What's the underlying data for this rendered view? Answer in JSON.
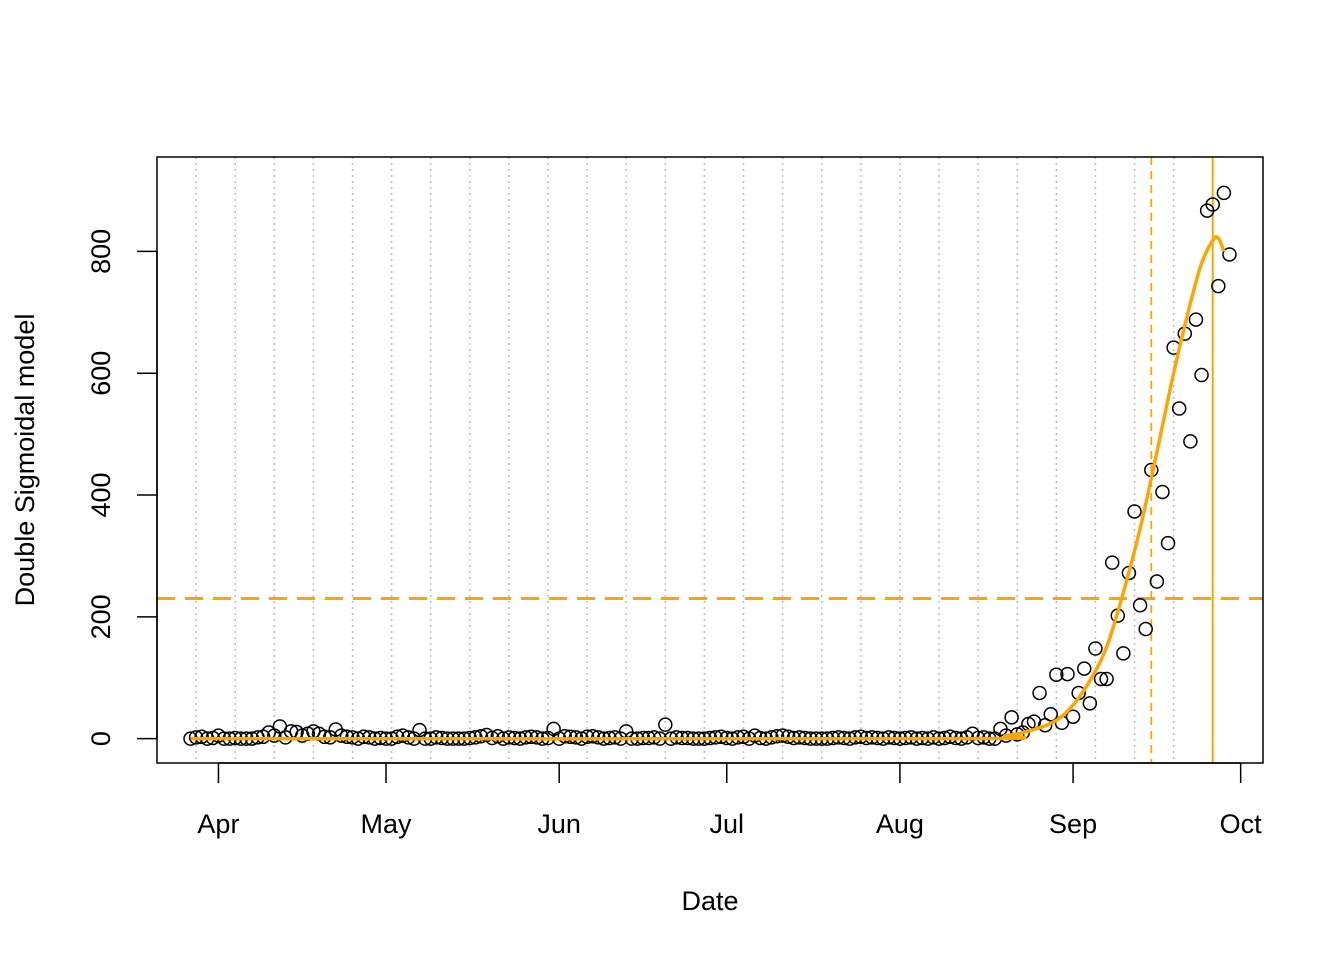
{
  "chart_data": {
    "type": "scatter",
    "title": "",
    "xlabel": "Date",
    "ylabel": "Double Sigmoidal model",
    "xlim": [
      "2020-03-21",
      "2020-10-05"
    ],
    "ylim": [
      -40,
      955
    ],
    "x_ticks": [
      {
        "date": "2020-04-01",
        "label": "Apr"
      },
      {
        "date": "2020-05-01",
        "label": "May"
      },
      {
        "date": "2020-06-01",
        "label": "Jun"
      },
      {
        "date": "2020-07-01",
        "label": "Jul"
      },
      {
        "date": "2020-08-01",
        "label": "Aug"
      },
      {
        "date": "2020-09-01",
        "label": "Sep"
      },
      {
        "date": "2020-10-01",
        "label": "Oct"
      }
    ],
    "y_ticks": [
      0,
      200,
      400,
      600,
      800
    ],
    "weekly_grid_dates": [
      "2020-03-28",
      "2020-04-04",
      "2020-04-11",
      "2020-04-18",
      "2020-04-25",
      "2020-05-02",
      "2020-05-09",
      "2020-05-16",
      "2020-05-23",
      "2020-05-30",
      "2020-06-06",
      "2020-06-13",
      "2020-06-20",
      "2020-06-27",
      "2020-07-04",
      "2020-07-11",
      "2020-07-18",
      "2020-07-25",
      "2020-08-01",
      "2020-08-08",
      "2020-08-15",
      "2020-08-22",
      "2020-08-29",
      "2020-09-05",
      "2020-09-12",
      "2020-09-19",
      "2020-09-26"
    ],
    "grid_color": "#bebebe",
    "model_color": "#ffa500",
    "horizontal_reference": 230,
    "dashed_vertical_date": "2020-09-15",
    "solid_vertical_date": "2020-09-26",
    "start_date": "2020-03-27",
    "observed": [
      0,
      2,
      3,
      0,
      1,
      5,
      0,
      0,
      1,
      0,
      0,
      0,
      2,
      3,
      10,
      5,
      20,
      2,
      12,
      11,
      5,
      8,
      12,
      8,
      3,
      2,
      15,
      5,
      3,
      2,
      0,
      3,
      2,
      0,
      1,
      0,
      0,
      3,
      5,
      2,
      0,
      14,
      0,
      0,
      2,
      1,
      0,
      0,
      0,
      0,
      1,
      2,
      4,
      6,
      1,
      4,
      0,
      2,
      1,
      0,
      2,
      3,
      2,
      0,
      1,
      16,
      0,
      4,
      3,
      2,
      0,
      3,
      4,
      2,
      0,
      1,
      2,
      0,
      12,
      0,
      0,
      1,
      1,
      2,
      0,
      23,
      0,
      2,
      1,
      1,
      0,
      0,
      0,
      1,
      2,
      3,
      1,
      0,
      2,
      3,
      0,
      5,
      1,
      0,
      2,
      4,
      5,
      3,
      1,
      2,
      1,
      0,
      0,
      0,
      0,
      1,
      2,
      1,
      0,
      2,
      3,
      1,
      2,
      1,
      0,
      2,
      1,
      0,
      1,
      2,
      0,
      1,
      0,
      2,
      0,
      1,
      3,
      1,
      0,
      2,
      8,
      1,
      2,
      0,
      0,
      16,
      5,
      35,
      7,
      10,
      24,
      28,
      75,
      22,
      40,
      105,
      26,
      106,
      36,
      75,
      115,
      58,
      148,
      98,
      98,
      289,
      202,
      140,
      272,
      373,
      219,
      180,
      441,
      258,
      405,
      321,
      642,
      542,
      665,
      488,
      688,
      597,
      867,
      877,
      743,
      896,
      795
    ],
    "model_curve": [
      {
        "x": "2020-03-27",
        "y": 0
      },
      {
        "x": "2020-08-10",
        "y": 0
      },
      {
        "x": "2020-08-20",
        "y": 5
      },
      {
        "x": "2020-08-25",
        "y": 15
      },
      {
        "x": "2020-08-29",
        "y": 30
      },
      {
        "x": "2020-09-01",
        "y": 55
      },
      {
        "x": "2020-09-04",
        "y": 95
      },
      {
        "x": "2020-09-07",
        "y": 150
      },
      {
        "x": "2020-09-10",
        "y": 240
      },
      {
        "x": "2020-09-13",
        "y": 345
      },
      {
        "x": "2020-09-16",
        "y": 470
      },
      {
        "x": "2020-09-19",
        "y": 600
      },
      {
        "x": "2020-09-22",
        "y": 715
      },
      {
        "x": "2020-09-24",
        "y": 780
      },
      {
        "x": "2020-09-26",
        "y": 818
      },
      {
        "x": "2020-09-27",
        "y": 822
      },
      {
        "x": "2020-09-28",
        "y": 800
      }
    ]
  }
}
